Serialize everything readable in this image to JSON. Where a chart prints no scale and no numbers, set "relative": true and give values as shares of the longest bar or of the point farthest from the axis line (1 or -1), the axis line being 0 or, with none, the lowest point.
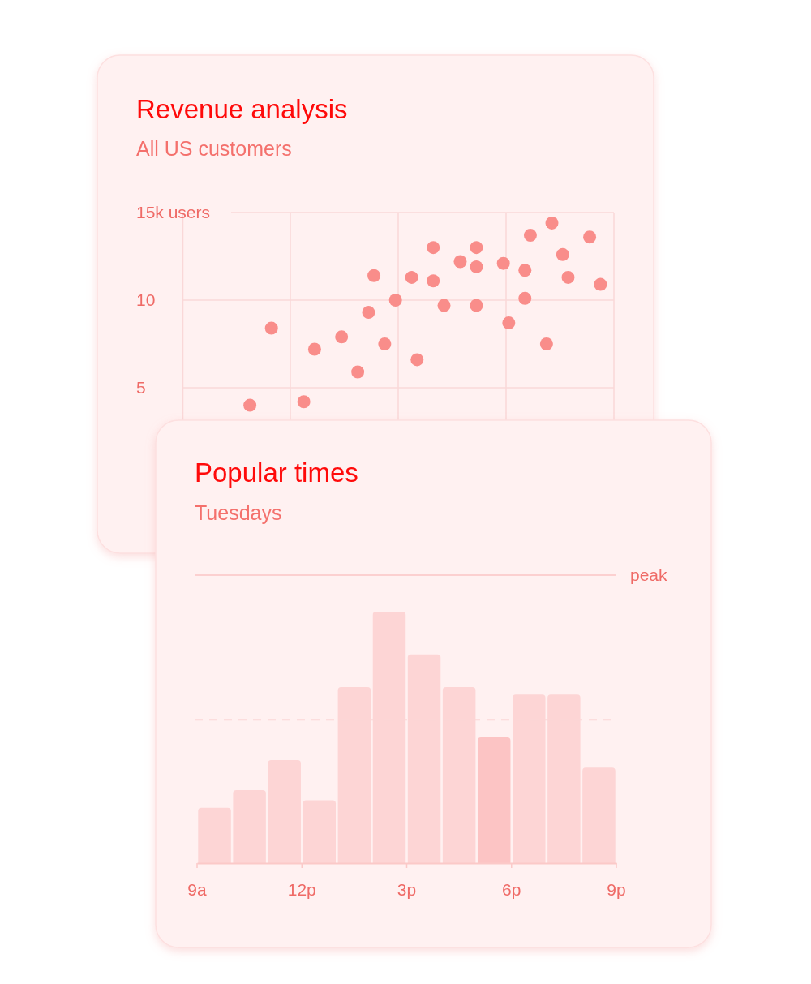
{
  "chart_data": [
    {
      "type": "scatter",
      "title": "Revenue analysis",
      "subtitle": "All US customers",
      "categories": [
        null,
        null,
        null,
        null,
        null,
        null,
        null,
        null,
        null,
        null,
        null,
        null,
        null,
        null,
        null,
        null,
        null,
        null,
        null,
        null,
        null,
        null,
        null,
        null,
        null,
        null,
        null,
        null,
        null,
        null,
        null,
        null,
        null,
        null,
        null,
        null,
        null,
        null,
        null,
        null,
        null,
        null,
        null,
        null,
        null,
        null,
        null,
        null,
        null,
        null,
        null,
        null,
        null,
        null,
        null,
        null,
        null,
        null,
        null,
        null,
        null,
        null,
        null,
        null,
        null,
        null,
        null,
        null,
        null,
        null,
        null,
        null,
        null,
        null,
        null,
        null,
        null,
        null,
        null,
        null
      ],
      "series": [
        {
          "color": "#f98d8a",
          "values": [
            null,
            null,
            null,
            null,
            null,
            null,
            null,
            null,
            null,
            null,
            null,
            null,
            4.0,
            null,
            null,
            null,
            8.4,
            null,
            null,
            null,
            null,
            null,
            4.2,
            null,
            7.2,
            null,
            null,
            null,
            null,
            7.9,
            null,
            null,
            5.9,
            null,
            9.3,
            11.4,
            null,
            7.5,
            null,
            10.0,
            null,
            null,
            11.3,
            6.6,
            null,
            null,
            13.0,
            null,
            9.7,
            null,
            null,
            12.2,
            null,
            null,
            13.0,
            null,
            null,
            null,
            null,
            12.1,
            8.7,
            null,
            null,
            11.7,
            13.7,
            null,
            null,
            7.5,
            14.4,
            null,
            12.6,
            11.3,
            null,
            null,
            null,
            13.6,
            null,
            10.9,
            null,
            null
          ]
        },
        {
          "color": "#f98d8a",
          "values": [
            null,
            null,
            null,
            null,
            null,
            null,
            null,
            null,
            null,
            null,
            null,
            null,
            null,
            null,
            null,
            null,
            null,
            null,
            null,
            null,
            null,
            null,
            null,
            null,
            null,
            null,
            null,
            null,
            null,
            null,
            null,
            null,
            null,
            null,
            null,
            null,
            null,
            null,
            null,
            null,
            null,
            null,
            null,
            null,
            null,
            null,
            11.1,
            null,
            null,
            null,
            null,
            null,
            null,
            null,
            11.9,
            null,
            null,
            null,
            null,
            null,
            null,
            null,
            null,
            10.1,
            null,
            null,
            null,
            null,
            null,
            null,
            null,
            null,
            null,
            null,
            null,
            null,
            null,
            null,
            null,
            null
          ]
        },
        {
          "color": "#f98d8a",
          "values": [
            null,
            null,
            null,
            null,
            null,
            null,
            null,
            null,
            null,
            null,
            null,
            null,
            null,
            null,
            null,
            null,
            null,
            null,
            null,
            null,
            null,
            null,
            null,
            null,
            null,
            null,
            null,
            null,
            null,
            null,
            null,
            null,
            null,
            null,
            null,
            null,
            null,
            null,
            null,
            null,
            null,
            null,
            null,
            null,
            null,
            null,
            null,
            null,
            null,
            null,
            null,
            null,
            null,
            null,
            9.7,
            null,
            null,
            null,
            null,
            null,
            null,
            null,
            null,
            null,
            null,
            null,
            null,
            null,
            null,
            null,
            null,
            null,
            null,
            null,
            null,
            null,
            null,
            null,
            null,
            null
          ]
        }
      ],
      "marker": "circle",
      "ylim": [
        0,
        15
      ],
      "yticks": [
        5,
        10,
        {
          "value": 15,
          "label": "15k users"
        }
      ],
      "grid": "y"
    },
    {
      "type": "bar",
      "title": "Popular times",
      "subtitle": "Tuesdays",
      "relative": true,
      "categories": [
        null,
        null,
        null,
        null,
        null,
        null,
        null,
        null,
        null,
        null,
        null,
        null
      ],
      "annotations": [
        "9a",
        "12p",
        "3p",
        "6p",
        "9p"
      ],
      "values": [
        0.22,
        0.29,
        0.41,
        0.25,
        0.7,
        1,
        0.83,
        0.7,
        0.5,
        0.67,
        0.67,
        0.38
      ],
      "colors": [
        "#fdd5d5",
        "#fdd5d5",
        "#fdd5d5",
        "#fdd5d5",
        "#fdd5d5",
        "#fdd5d5",
        "#fdd5d5",
        "#fdd5d5",
        "#fcc4c4",
        "#fdd5d5",
        "#fdd5d5",
        "#fdd5d5"
      ],
      "ref_lines": [
        {
          "axis": "y",
          "value": 1.145,
          "label": "peak",
          "color": "#fcd0d0",
          "line_style": "solid"
        },
        {
          "axis": "y",
          "value": 0.57,
          "color": "#fcd6d6",
          "line_style": "dashed"
        }
      ]
    }
  ]
}
